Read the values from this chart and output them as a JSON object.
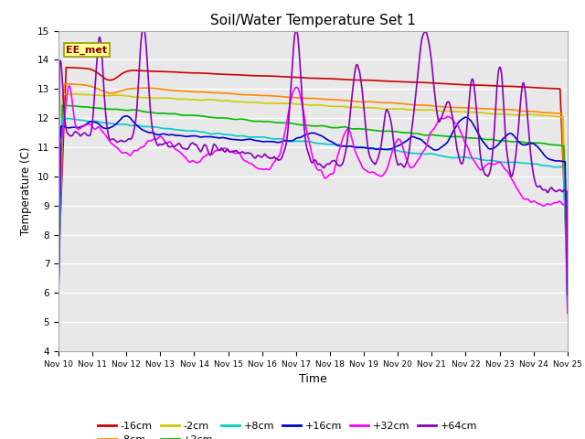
{
  "title": "Soil/Water Temperature Set 1",
  "xlabel": "Time",
  "ylabel": "Temperature (C)",
  "ylim": [
    4.0,
    15.0
  ],
  "yticks": [
    4.0,
    5.0,
    6.0,
    7.0,
    8.0,
    9.0,
    10.0,
    11.0,
    12.0,
    13.0,
    14.0,
    15.0
  ],
  "xtick_labels": [
    "Nov 10",
    "Nov 11",
    "Nov 12",
    "Nov 13",
    "Nov 14",
    "Nov 15",
    "Nov 16",
    "Nov 17",
    "Nov 18",
    "Nov 19",
    "Nov 20",
    "Nov 21",
    "Nov 22",
    "Nov 23",
    "Nov 24",
    "Nov 25"
  ],
  "series": {
    "-16cm": {
      "color": "#cc0000",
      "lw": 1.2
    },
    "-8cm": {
      "color": "#ff8800",
      "lw": 1.2
    },
    "-2cm": {
      "color": "#cccc00",
      "lw": 1.2
    },
    "+2cm": {
      "color": "#00bb00",
      "lw": 1.2
    },
    "+8cm": {
      "color": "#00cccc",
      "lw": 1.2
    },
    "+16cm": {
      "color": "#0000cc",
      "lw": 1.2
    },
    "+32cm": {
      "color": "#ff00ff",
      "lw": 1.2
    },
    "+64cm": {
      "color": "#8800bb",
      "lw": 1.2
    }
  },
  "fig_bg": "#ffffff",
  "plot_bg": "#e8e8e8",
  "grid_color": "#ffffff",
  "legend_label": "EE_met",
  "legend_bg": "#ffff99",
  "legend_border": "#999900"
}
